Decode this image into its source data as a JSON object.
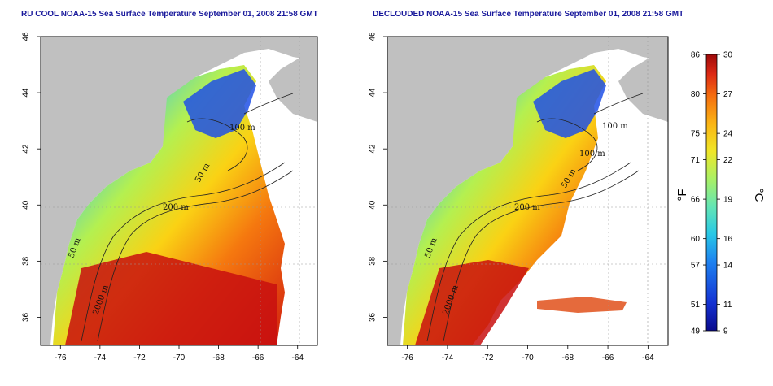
{
  "maps": [
    {
      "title": "RU COOL NOAA-15 Sea Surface Temperature September 01, 2008 21:58 GMT",
      "x_ticks": [
        "-76",
        "-74",
        "-72",
        "-70",
        "-68",
        "-66",
        "-64"
      ],
      "y_ticks": [
        "46",
        "44",
        "42",
        "40",
        "38",
        "36"
      ],
      "contour_labels": [
        "100 m",
        "50 m",
        "200 m",
        "50 m",
        "2000 m"
      ]
    },
    {
      "title": "DECLOUDED NOAA-15 Sea Surface Temperature September 01, 2008 21:58 GMT",
      "x_ticks": [
        "-76",
        "-74",
        "-72",
        "-70",
        "-68",
        "-66",
        "-64"
      ],
      "y_ticks": [
        "46",
        "44",
        "42",
        "40",
        "38",
        "36"
      ],
      "contour_labels": [
        "100 m",
        "100 m",
        "50 m",
        "200 m",
        "50 m",
        "2000 m"
      ]
    }
  ],
  "map_extent": {
    "lon": [
      -77,
      -63
    ],
    "lat": [
      35,
      46
    ]
  },
  "colorbar": {
    "fahrenheit_ticks": [
      "86",
      "80",
      "75",
      "71",
      "66",
      "60",
      "57",
      "51",
      "49"
    ],
    "celsius_ticks": [
      "30",
      "27",
      "24",
      "22",
      "19",
      "16",
      "14",
      "11",
      "9"
    ],
    "fahrenheit_unit": "°F",
    "celsius_unit": "°C",
    "range_c": [
      9,
      30
    ],
    "colors": [
      "#0a0a8c",
      "#1432d2",
      "#1e82f0",
      "#28c8e6",
      "#64e6b4",
      "#aaf064",
      "#f0e628",
      "#fab414",
      "#f56e0f",
      "#dc2814",
      "#9e0a0a"
    ]
  },
  "colors": {
    "land": "#c0c0c0",
    "water_nodata": "#ffffff",
    "title": "#1a1a9c"
  }
}
